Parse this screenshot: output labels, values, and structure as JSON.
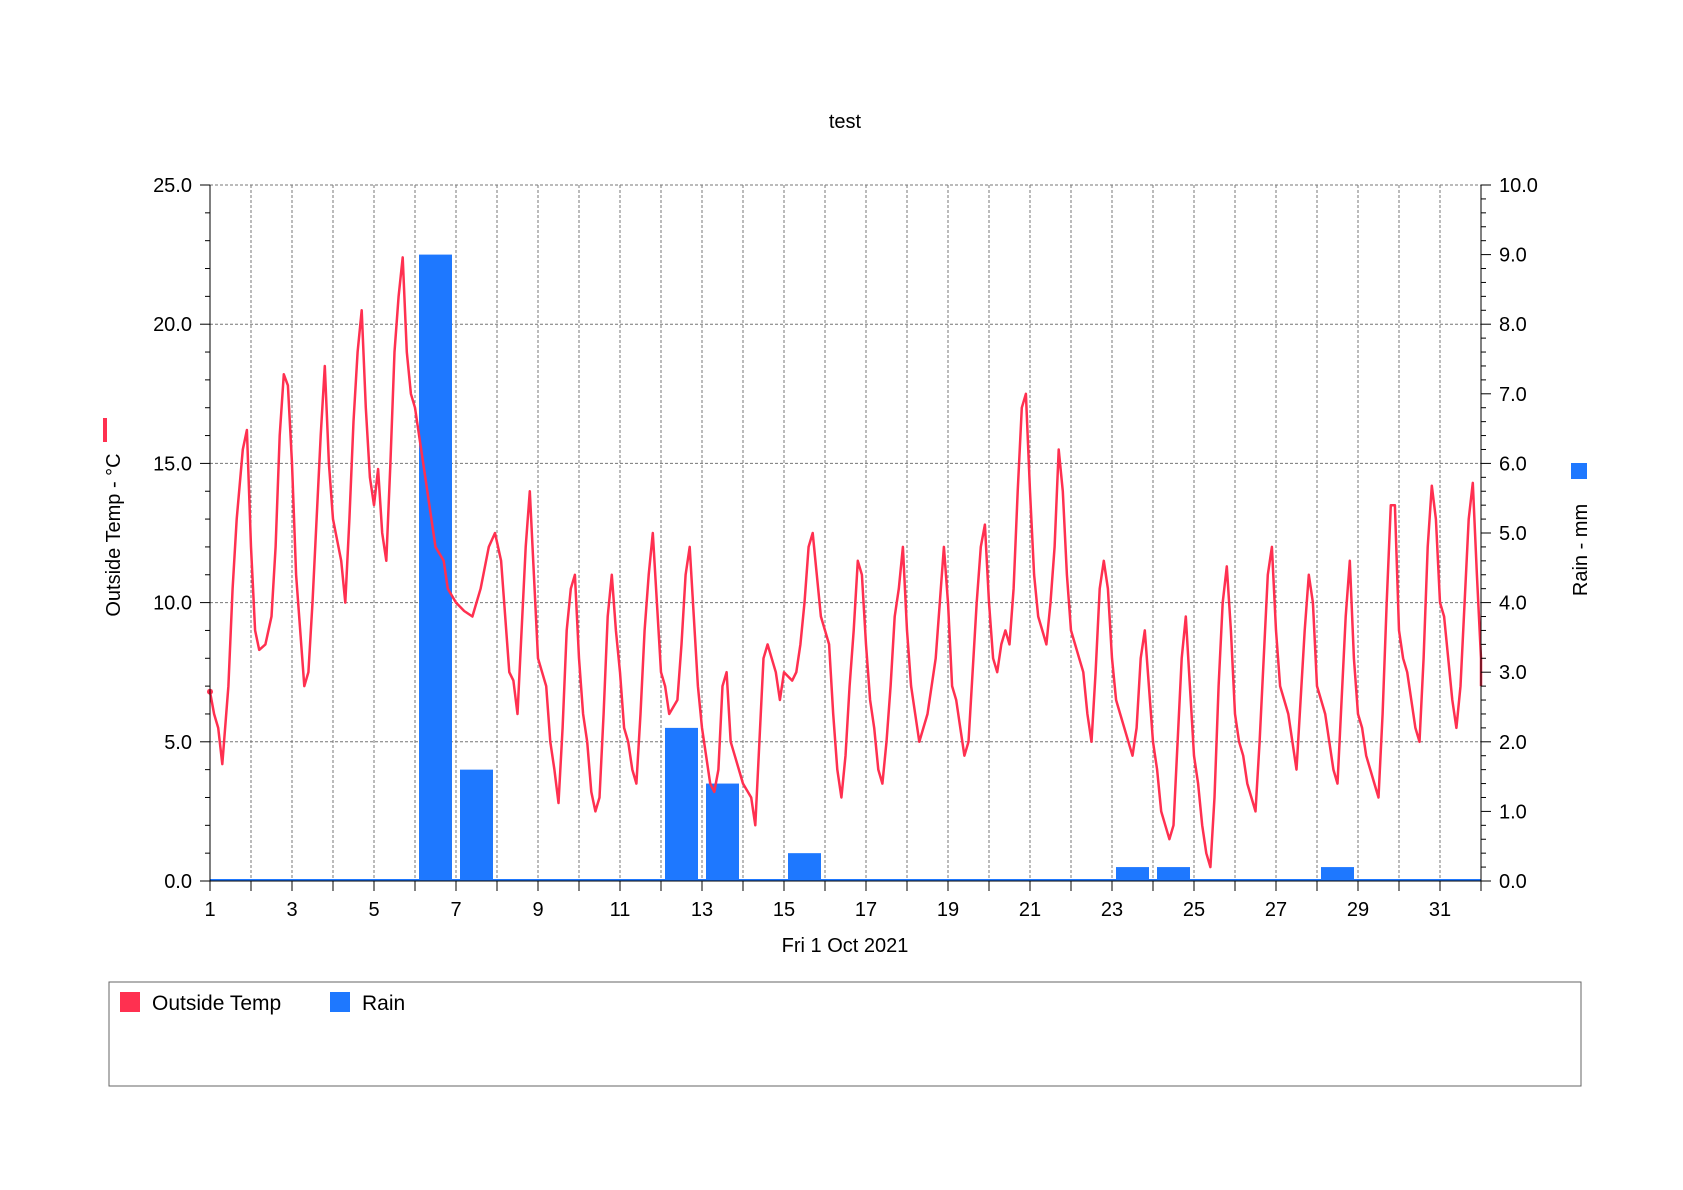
{
  "chart_data": {
    "type": "line+bar",
    "title": "test",
    "xlabel": "Fri 1 Oct 2021",
    "ylabel_left": "Outside Temp - °C",
    "ylabel_right": "Rain - mm",
    "x_ticks": [
      "1",
      "3",
      "5",
      "7",
      "9",
      "11",
      "13",
      "15",
      "17",
      "19",
      "21",
      "23",
      "25",
      "27",
      "29",
      "31"
    ],
    "xlim": [
      1,
      32
    ],
    "ylim_left": [
      0,
      25
    ],
    "ylim_right": [
      0,
      10
    ],
    "y_ticks_left": [
      "0.0",
      "5.0",
      "10.0",
      "15.0",
      "20.0",
      "25.0"
    ],
    "y_ticks_right": [
      "0.0",
      "1.0",
      "2.0",
      "3.0",
      "4.0",
      "5.0",
      "6.0",
      "7.0",
      "8.0",
      "9.0",
      "10.0"
    ],
    "grid": true,
    "legend_position": "bottom",
    "series": [
      {
        "name": "Outside Temp",
        "kind": "line",
        "axis": "left",
        "color": "#ff3050",
        "points": [
          [
            1.0,
            6.8
          ],
          [
            1.1,
            6.0
          ],
          [
            1.2,
            5.5
          ],
          [
            1.3,
            4.2
          ],
          [
            1.45,
            7.0
          ],
          [
            1.55,
            10.5
          ],
          [
            1.65,
            13.0
          ],
          [
            1.8,
            15.5
          ],
          [
            1.9,
            16.2
          ],
          [
            2.0,
            12.0
          ],
          [
            2.1,
            9.0
          ],
          [
            2.2,
            8.3
          ],
          [
            2.35,
            8.5
          ],
          [
            2.5,
            9.5
          ],
          [
            2.6,
            12.0
          ],
          [
            2.7,
            16.0
          ],
          [
            2.8,
            18.2
          ],
          [
            2.9,
            17.8
          ],
          [
            3.0,
            15.0
          ],
          [
            3.1,
            11.0
          ],
          [
            3.2,
            9.0
          ],
          [
            3.3,
            7.0
          ],
          [
            3.4,
            7.5
          ],
          [
            3.5,
            10.0
          ],
          [
            3.6,
            13.0
          ],
          [
            3.7,
            16.0
          ],
          [
            3.8,
            18.5
          ],
          [
            3.9,
            15.0
          ],
          [
            4.0,
            13.0
          ],
          [
            4.2,
            11.5
          ],
          [
            4.3,
            10.0
          ],
          [
            4.4,
            13.0
          ],
          [
            4.5,
            16.5
          ],
          [
            4.6,
            19.0
          ],
          [
            4.7,
            20.5
          ],
          [
            4.8,
            17.0
          ],
          [
            4.9,
            14.5
          ],
          [
            5.0,
            13.5
          ],
          [
            5.1,
            14.8
          ],
          [
            5.2,
            12.5
          ],
          [
            5.3,
            11.5
          ],
          [
            5.4,
            15.0
          ],
          [
            5.5,
            19.0
          ],
          [
            5.6,
            21.0
          ],
          [
            5.7,
            22.4
          ],
          [
            5.8,
            19.0
          ],
          [
            5.9,
            17.5
          ],
          [
            6.0,
            17.0
          ],
          [
            6.1,
            16.0
          ],
          [
            6.25,
            14.5
          ],
          [
            6.4,
            13.0
          ],
          [
            6.5,
            12.0
          ],
          [
            6.7,
            11.5
          ],
          [
            6.8,
            10.5
          ],
          [
            7.0,
            10.0
          ],
          [
            7.2,
            9.7
          ],
          [
            7.4,
            9.5
          ],
          [
            7.6,
            10.5
          ],
          [
            7.8,
            12.0
          ],
          [
            7.95,
            12.5
          ],
          [
            8.1,
            11.5
          ],
          [
            8.2,
            9.5
          ],
          [
            8.3,
            7.5
          ],
          [
            8.4,
            7.2
          ],
          [
            8.5,
            6.0
          ],
          [
            8.6,
            9.0
          ],
          [
            8.7,
            12.0
          ],
          [
            8.8,
            14.0
          ],
          [
            8.9,
            11.0
          ],
          [
            9.0,
            8.0
          ],
          [
            9.2,
            7.0
          ],
          [
            9.3,
            5.0
          ],
          [
            9.4,
            4.0
          ],
          [
            9.5,
            2.8
          ],
          [
            9.6,
            5.5
          ],
          [
            9.7,
            9.0
          ],
          [
            9.8,
            10.5
          ],
          [
            9.9,
            11.0
          ],
          [
            10.0,
            8.0
          ],
          [
            10.1,
            6.0
          ],
          [
            10.2,
            5.0
          ],
          [
            10.3,
            3.2
          ],
          [
            10.4,
            2.5
          ],
          [
            10.5,
            3.0
          ],
          [
            10.6,
            6.0
          ],
          [
            10.7,
            9.5
          ],
          [
            10.8,
            11.0
          ],
          [
            10.9,
            9.0
          ],
          [
            11.0,
            7.5
          ],
          [
            11.1,
            5.5
          ],
          [
            11.2,
            5.0
          ],
          [
            11.3,
            4.0
          ],
          [
            11.4,
            3.5
          ],
          [
            11.5,
            6.0
          ],
          [
            11.6,
            9.0
          ],
          [
            11.7,
            11.0
          ],
          [
            11.8,
            12.5
          ],
          [
            11.9,
            10.0
          ],
          [
            12.0,
            7.5
          ],
          [
            12.1,
            7.0
          ],
          [
            12.2,
            6.0
          ],
          [
            12.4,
            6.5
          ],
          [
            12.5,
            8.5
          ],
          [
            12.6,
            11.0
          ],
          [
            12.7,
            12.0
          ],
          [
            12.8,
            9.5
          ],
          [
            12.9,
            7.0
          ],
          [
            13.0,
            5.5
          ],
          [
            13.1,
            4.5
          ],
          [
            13.2,
            3.5
          ],
          [
            13.3,
            3.2
          ],
          [
            13.4,
            4.0
          ],
          [
            13.5,
            7.0
          ],
          [
            13.6,
            7.5
          ],
          [
            13.7,
            5.0
          ],
          [
            13.8,
            4.5
          ],
          [
            13.9,
            4.0
          ],
          [
            14.0,
            3.5
          ],
          [
            14.2,
            3.0
          ],
          [
            14.3,
            2.0
          ],
          [
            14.4,
            5.0
          ],
          [
            14.5,
            8.0
          ],
          [
            14.6,
            8.5
          ],
          [
            14.7,
            8.0
          ],
          [
            14.8,
            7.5
          ],
          [
            14.9,
            6.5
          ],
          [
            15.0,
            7.5
          ],
          [
            15.2,
            7.2
          ],
          [
            15.3,
            7.5
          ],
          [
            15.4,
            8.5
          ],
          [
            15.5,
            10.0
          ],
          [
            15.6,
            12.0
          ],
          [
            15.7,
            12.5
          ],
          [
            15.8,
            11.0
          ],
          [
            15.9,
            9.5
          ],
          [
            16.0,
            9.0
          ],
          [
            16.1,
            8.5
          ],
          [
            16.2,
            6.0
          ],
          [
            16.3,
            4.0
          ],
          [
            16.4,
            3.0
          ],
          [
            16.5,
            4.5
          ],
          [
            16.6,
            7.0
          ],
          [
            16.7,
            9.0
          ],
          [
            16.8,
            11.5
          ],
          [
            16.9,
            11.0
          ],
          [
            17.0,
            8.5
          ],
          [
            17.1,
            6.5
          ],
          [
            17.2,
            5.5
          ],
          [
            17.3,
            4.0
          ],
          [
            17.4,
            3.5
          ],
          [
            17.5,
            5.0
          ],
          [
            17.6,
            7.0
          ],
          [
            17.7,
            9.5
          ],
          [
            17.8,
            10.5
          ],
          [
            17.9,
            12.0
          ],
          [
            18.0,
            9.0
          ],
          [
            18.1,
            7.0
          ],
          [
            18.2,
            6.0
          ],
          [
            18.3,
            5.0
          ],
          [
            18.4,
            5.5
          ],
          [
            18.5,
            6.0
          ],
          [
            18.7,
            8.0
          ],
          [
            18.8,
            10.0
          ],
          [
            18.9,
            12.0
          ],
          [
            19.0,
            10.0
          ],
          [
            19.1,
            7.0
          ],
          [
            19.2,
            6.5
          ],
          [
            19.3,
            5.5
          ],
          [
            19.4,
            4.5
          ],
          [
            19.5,
            5.0
          ],
          [
            19.6,
            7.5
          ],
          [
            19.7,
            10.0
          ],
          [
            19.8,
            12.0
          ],
          [
            19.9,
            12.8
          ],
          [
            20.0,
            10.0
          ],
          [
            20.1,
            8.0
          ],
          [
            20.2,
            7.5
          ],
          [
            20.3,
            8.5
          ],
          [
            20.4,
            9.0
          ],
          [
            20.5,
            8.5
          ],
          [
            20.6,
            10.5
          ],
          [
            20.7,
            14.0
          ],
          [
            20.8,
            17.0
          ],
          [
            20.9,
            17.5
          ],
          [
            21.0,
            14.0
          ],
          [
            21.1,
            11.0
          ],
          [
            21.2,
            9.5
          ],
          [
            21.3,
            9.0
          ],
          [
            21.4,
            8.5
          ],
          [
            21.5,
            10.0
          ],
          [
            21.6,
            12.0
          ],
          [
            21.7,
            15.5
          ],
          [
            21.8,
            14.0
          ],
          [
            21.9,
            11.0
          ],
          [
            22.0,
            9.0
          ],
          [
            22.1,
            8.5
          ],
          [
            22.2,
            8.0
          ],
          [
            22.3,
            7.5
          ],
          [
            22.4,
            6.0
          ],
          [
            22.5,
            5.0
          ],
          [
            22.6,
            7.5
          ],
          [
            22.7,
            10.5
          ],
          [
            22.8,
            11.5
          ],
          [
            22.9,
            10.5
          ],
          [
            23.0,
            8.0
          ],
          [
            23.1,
            6.5
          ],
          [
            23.2,
            6.0
          ],
          [
            23.3,
            5.5
          ],
          [
            23.4,
            5.0
          ],
          [
            23.5,
            4.5
          ],
          [
            23.6,
            5.5
          ],
          [
            23.7,
            8.0
          ],
          [
            23.8,
            9.0
          ],
          [
            23.9,
            7.0
          ],
          [
            24.0,
            5.0
          ],
          [
            24.1,
            4.0
          ],
          [
            24.2,
            2.5
          ],
          [
            24.3,
            2.0
          ],
          [
            24.4,
            1.5
          ],
          [
            24.5,
            2.0
          ],
          [
            24.6,
            5.0
          ],
          [
            24.7,
            8.0
          ],
          [
            24.8,
            9.5
          ],
          [
            24.9,
            7.0
          ],
          [
            25.0,
            4.5
          ],
          [
            25.1,
            3.5
          ],
          [
            25.2,
            2.0
          ],
          [
            25.3,
            1.0
          ],
          [
            25.4,
            0.5
          ],
          [
            25.5,
            3.0
          ],
          [
            25.6,
            7.0
          ],
          [
            25.7,
            10.0
          ],
          [
            25.8,
            11.3
          ],
          [
            25.9,
            9.0
          ],
          [
            26.0,
            6.0
          ],
          [
            26.1,
            5.0
          ],
          [
            26.2,
            4.5
          ],
          [
            26.3,
            3.5
          ],
          [
            26.4,
            3.0
          ],
          [
            26.5,
            2.5
          ],
          [
            26.6,
            5.0
          ],
          [
            26.7,
            8.0
          ],
          [
            26.8,
            11.0
          ],
          [
            26.9,
            12.0
          ],
          [
            27.0,
            9.0
          ],
          [
            27.1,
            7.0
          ],
          [
            27.2,
            6.5
          ],
          [
            27.3,
            6.0
          ],
          [
            27.4,
            5.0
          ],
          [
            27.5,
            4.0
          ],
          [
            27.6,
            6.5
          ],
          [
            27.7,
            9.0
          ],
          [
            27.8,
            11.0
          ],
          [
            27.9,
            10.0
          ],
          [
            28.0,
            7.0
          ],
          [
            28.1,
            6.5
          ],
          [
            28.2,
            6.0
          ],
          [
            28.3,
            5.0
          ],
          [
            28.4,
            4.0
          ],
          [
            28.5,
            3.5
          ],
          [
            28.6,
            6.5
          ],
          [
            28.7,
            9.5
          ],
          [
            28.8,
            11.5
          ],
          [
            28.9,
            8.0
          ],
          [
            29.0,
            6.0
          ],
          [
            29.1,
            5.5
          ],
          [
            29.2,
            4.5
          ],
          [
            29.3,
            4.0
          ],
          [
            29.4,
            3.5
          ],
          [
            29.5,
            3.0
          ],
          [
            29.6,
            6.0
          ],
          [
            29.7,
            10.0
          ],
          [
            29.8,
            13.5
          ],
          [
            29.9,
            13.5
          ],
          [
            30.0,
            9.0
          ],
          [
            30.1,
            8.0
          ],
          [
            30.2,
            7.5
          ],
          [
            30.3,
            6.5
          ],
          [
            30.4,
            5.5
          ],
          [
            30.5,
            5.0
          ],
          [
            30.6,
            8.0
          ],
          [
            30.7,
            12.0
          ],
          [
            30.8,
            14.2
          ],
          [
            30.9,
            13.0
          ],
          [
            31.0,
            10.0
          ],
          [
            31.1,
            9.5
          ],
          [
            31.2,
            8.0
          ],
          [
            31.3,
            6.5
          ],
          [
            31.4,
            5.5
          ],
          [
            31.5,
            7.0
          ],
          [
            31.6,
            10.0
          ],
          [
            31.7,
            13.0
          ],
          [
            31.8,
            14.3
          ],
          [
            31.9,
            11.0
          ],
          [
            32.0,
            8.0
          ],
          [
            32.0,
            7.0
          ]
        ]
      },
      {
        "name": "Rain",
        "kind": "bar",
        "axis": "right",
        "color": "#1e78ff",
        "bars": [
          {
            "day": 6,
            "value": 9.0
          },
          {
            "day": 7,
            "value": 1.6
          },
          {
            "day": 12,
            "value": 2.2
          },
          {
            "day": 13,
            "value": 1.4
          },
          {
            "day": 15,
            "value": 0.4
          },
          {
            "day": 23,
            "value": 0.2
          },
          {
            "day": 24,
            "value": 0.2
          },
          {
            "day": 28,
            "value": 0.2
          }
        ]
      }
    ]
  },
  "legend": {
    "items": [
      {
        "label": "Outside Temp",
        "color": "#ff3050"
      },
      {
        "label": "Rain",
        "color": "#1e78ff"
      }
    ]
  }
}
